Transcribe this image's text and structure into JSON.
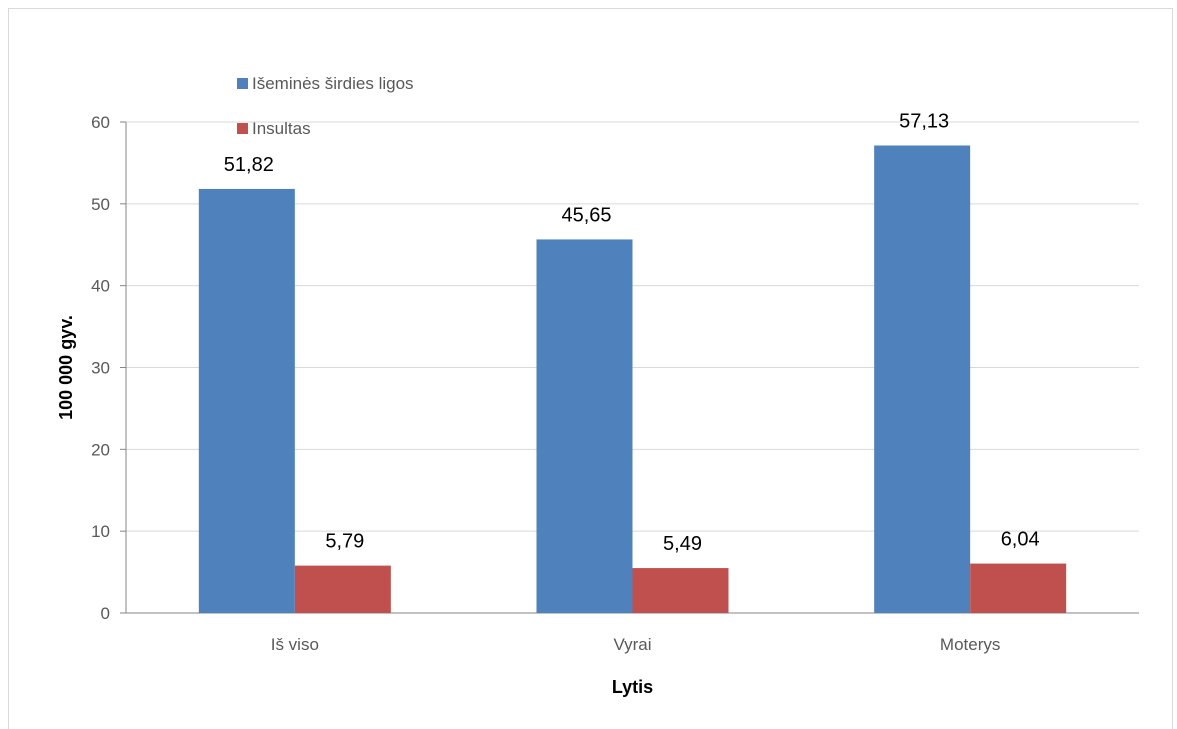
{
  "chart_data": {
    "type": "bar",
    "categories": [
      "Iš viso",
      "Vyrai",
      "Moterys"
    ],
    "series": [
      {
        "name": "Išeminės širdies ligos",
        "values": [
          51.82,
          45.65,
          57.13
        ],
        "labels": [
          "51,82",
          "45,65",
          "57,13"
        ],
        "color": "#4f81bd"
      },
      {
        "name": "Insultas",
        "values": [
          5.79,
          5.49,
          6.04
        ],
        "labels": [
          "5,79",
          "5,49",
          "6,04"
        ],
        "color": "#c0504d"
      }
    ],
    "xlabel": "Lytis",
    "ylabel": "100 000 gyv.",
    "ylim": [
      0,
      60
    ],
    "yticks": [
      0,
      10,
      20,
      30,
      40,
      50,
      60
    ],
    "grid": true,
    "legend": "top-left"
  }
}
